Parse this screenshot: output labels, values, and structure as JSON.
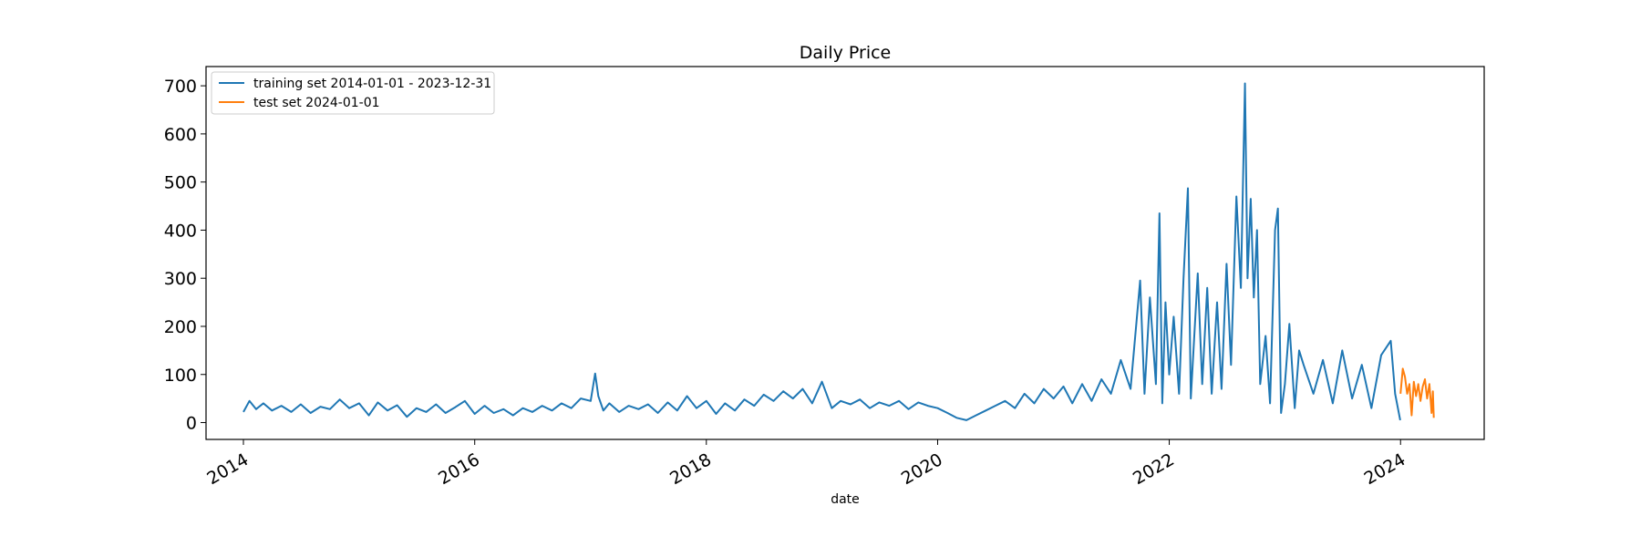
{
  "chart_data": {
    "type": "line",
    "title": "Daily Price",
    "xlabel": "date",
    "ylabel": "",
    "x_scale": "date",
    "xlim": [
      "2013-09-05",
      "2024-09-21"
    ],
    "ylim": [
      -35,
      740
    ],
    "x_ticks": [
      {
        "date": "2014-01-01",
        "label": "2014"
      },
      {
        "date": "2016-01-01",
        "label": "2016"
      },
      {
        "date": "2018-01-01",
        "label": "2018"
      },
      {
        "date": "2020-01-01",
        "label": "2020"
      },
      {
        "date": "2022-01-01",
        "label": "2022"
      },
      {
        "date": "2024-01-01",
        "label": "2024"
      }
    ],
    "y_ticks": [
      0,
      100,
      200,
      300,
      400,
      500,
      600,
      700
    ],
    "grid": false,
    "legend_position": "top-left",
    "series": [
      {
        "name": "training set 2014-01-01 - 2023-12-31",
        "color": "#1f77b4",
        "points": [
          [
            "2014-01-01",
            22
          ],
          [
            "2014-01-20",
            45
          ],
          [
            "2014-02-10",
            28
          ],
          [
            "2014-03-05",
            40
          ],
          [
            "2014-04-01",
            25
          ],
          [
            "2014-05-01",
            35
          ],
          [
            "2014-06-01",
            22
          ],
          [
            "2014-07-01",
            38
          ],
          [
            "2014-08-01",
            20
          ],
          [
            "2014-09-01",
            33
          ],
          [
            "2014-10-01",
            28
          ],
          [
            "2014-11-01",
            48
          ],
          [
            "2014-12-01",
            30
          ],
          [
            "2015-01-01",
            40
          ],
          [
            "2015-02-01",
            15
          ],
          [
            "2015-03-01",
            42
          ],
          [
            "2015-04-01",
            25
          ],
          [
            "2015-05-01",
            36
          ],
          [
            "2015-06-01",
            12
          ],
          [
            "2015-07-01",
            30
          ],
          [
            "2015-08-01",
            22
          ],
          [
            "2015-09-01",
            38
          ],
          [
            "2015-10-01",
            20
          ],
          [
            "2015-11-01",
            32
          ],
          [
            "2015-12-01",
            45
          ],
          [
            "2016-01-01",
            18
          ],
          [
            "2016-02-01",
            35
          ],
          [
            "2016-03-01",
            20
          ],
          [
            "2016-04-01",
            28
          ],
          [
            "2016-05-01",
            15
          ],
          [
            "2016-06-01",
            30
          ],
          [
            "2016-07-01",
            22
          ],
          [
            "2016-08-01",
            35
          ],
          [
            "2016-09-01",
            25
          ],
          [
            "2016-10-01",
            40
          ],
          [
            "2016-11-01",
            30
          ],
          [
            "2016-12-01",
            50
          ],
          [
            "2017-01-01",
            45
          ],
          [
            "2017-01-15",
            102
          ],
          [
            "2017-01-25",
            55
          ],
          [
            "2017-02-10",
            25
          ],
          [
            "2017-03-01",
            40
          ],
          [
            "2017-04-01",
            22
          ],
          [
            "2017-05-01",
            35
          ],
          [
            "2017-06-01",
            28
          ],
          [
            "2017-07-01",
            38
          ],
          [
            "2017-08-01",
            20
          ],
          [
            "2017-09-01",
            42
          ],
          [
            "2017-10-01",
            25
          ],
          [
            "2017-11-01",
            55
          ],
          [
            "2017-12-01",
            30
          ],
          [
            "2018-01-01",
            45
          ],
          [
            "2018-02-01",
            18
          ],
          [
            "2018-03-01",
            40
          ],
          [
            "2018-04-01",
            25
          ],
          [
            "2018-05-01",
            48
          ],
          [
            "2018-06-01",
            35
          ],
          [
            "2018-07-01",
            58
          ],
          [
            "2018-08-01",
            45
          ],
          [
            "2018-09-01",
            65
          ],
          [
            "2018-10-01",
            50
          ],
          [
            "2018-11-01",
            70
          ],
          [
            "2018-12-01",
            40
          ],
          [
            "2019-01-01",
            85
          ],
          [
            "2019-02-01",
            30
          ],
          [
            "2019-03-01",
            45
          ],
          [
            "2019-04-01",
            38
          ],
          [
            "2019-05-01",
            48
          ],
          [
            "2019-06-01",
            30
          ],
          [
            "2019-07-01",
            42
          ],
          [
            "2019-08-01",
            35
          ],
          [
            "2019-09-01",
            45
          ],
          [
            "2019-10-01",
            28
          ],
          [
            "2019-11-01",
            42
          ],
          [
            "2019-12-01",
            35
          ],
          [
            "2020-01-01",
            30
          ],
          [
            "2020-02-01",
            20
          ],
          [
            "2020-03-01",
            10
          ],
          [
            "2020-04-01",
            5
          ],
          [
            "2020-05-01",
            15
          ],
          [
            "2020-06-01",
            25
          ],
          [
            "2020-07-01",
            35
          ],
          [
            "2020-08-01",
            45
          ],
          [
            "2020-09-01",
            30
          ],
          [
            "2020-10-01",
            60
          ],
          [
            "2020-11-01",
            40
          ],
          [
            "2020-12-01",
            70
          ],
          [
            "2021-01-01",
            50
          ],
          [
            "2021-02-01",
            75
          ],
          [
            "2021-03-01",
            40
          ],
          [
            "2021-04-01",
            80
          ],
          [
            "2021-05-01",
            45
          ],
          [
            "2021-06-01",
            90
          ],
          [
            "2021-07-01",
            60
          ],
          [
            "2021-08-01",
            130
          ],
          [
            "2021-09-01",
            70
          ],
          [
            "2021-10-01",
            295
          ],
          [
            "2021-10-15",
            60
          ],
          [
            "2021-11-01",
            260
          ],
          [
            "2021-11-20",
            80
          ],
          [
            "2021-12-01",
            435
          ],
          [
            "2021-12-10",
            40
          ],
          [
            "2021-12-20",
            250
          ],
          [
            "2022-01-01",
            100
          ],
          [
            "2022-01-15",
            220
          ],
          [
            "2022-02-01",
            60
          ],
          [
            "2022-02-15",
            300
          ],
          [
            "2022-03-01",
            487
          ],
          [
            "2022-03-10",
            50
          ],
          [
            "2022-04-01",
            310
          ],
          [
            "2022-04-15",
            80
          ],
          [
            "2022-05-01",
            280
          ],
          [
            "2022-05-15",
            60
          ],
          [
            "2022-06-01",
            250
          ],
          [
            "2022-06-15",
            70
          ],
          [
            "2022-07-01",
            330
          ],
          [
            "2022-07-15",
            120
          ],
          [
            "2022-08-01",
            470
          ],
          [
            "2022-08-15",
            280
          ],
          [
            "2022-08-28",
            705
          ],
          [
            "2022-09-05",
            300
          ],
          [
            "2022-09-15",
            465
          ],
          [
            "2022-09-25",
            260
          ],
          [
            "2022-10-05",
            400
          ],
          [
            "2022-10-15",
            80
          ],
          [
            "2022-11-01",
            180
          ],
          [
            "2022-11-15",
            40
          ],
          [
            "2022-12-01",
            400
          ],
          [
            "2022-12-10",
            445
          ],
          [
            "2022-12-20",
            20
          ],
          [
            "2023-01-01",
            80
          ],
          [
            "2023-01-15",
            205
          ],
          [
            "2023-02-01",
            30
          ],
          [
            "2023-02-15",
            150
          ],
          [
            "2023-03-01",
            120
          ],
          [
            "2023-04-01",
            60
          ],
          [
            "2023-05-01",
            130
          ],
          [
            "2023-06-01",
            40
          ],
          [
            "2023-07-01",
            150
          ],
          [
            "2023-08-01",
            50
          ],
          [
            "2023-09-01",
            120
          ],
          [
            "2023-10-01",
            30
          ],
          [
            "2023-11-01",
            140
          ],
          [
            "2023-12-01",
            170
          ],
          [
            "2023-12-15",
            60
          ],
          [
            "2023-12-31",
            5
          ]
        ]
      },
      {
        "name": "test set 2024-01-01",
        "color": "#ff7f0e",
        "points": [
          [
            "2024-01-01",
            60
          ],
          [
            "2024-01-08",
            112
          ],
          [
            "2024-01-15",
            95
          ],
          [
            "2024-01-22",
            60
          ],
          [
            "2024-01-29",
            80
          ],
          [
            "2024-02-05",
            15
          ],
          [
            "2024-02-12",
            85
          ],
          [
            "2024-02-19",
            55
          ],
          [
            "2024-02-26",
            80
          ],
          [
            "2024-03-04",
            45
          ],
          [
            "2024-03-11",
            75
          ],
          [
            "2024-03-18",
            90
          ],
          [
            "2024-03-25",
            50
          ],
          [
            "2024-04-01",
            80
          ],
          [
            "2024-04-08",
            20
          ],
          [
            "2024-04-12",
            65
          ],
          [
            "2024-04-15",
            10
          ]
        ]
      }
    ]
  }
}
